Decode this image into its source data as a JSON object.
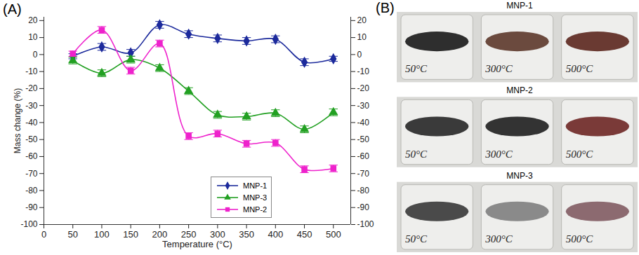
{
  "chart_data": {
    "type": "line",
    "panel_label": "(A)",
    "x_label": "Temperature (°C)",
    "y_label": "Mass change (%)",
    "x": [
      50,
      100,
      150,
      200,
      250,
      300,
      350,
      400,
      450,
      500
    ],
    "xlim": [
      0,
      530
    ],
    "xticks": [
      0,
      50,
      100,
      150,
      200,
      250,
      300,
      350,
      400,
      450,
      500
    ],
    "ylim": [
      -100,
      22
    ],
    "yticks": [
      -100,
      -90,
      -80,
      -70,
      -60,
      -50,
      -40,
      -30,
      -20,
      -10,
      0,
      10,
      20
    ],
    "line_style": "smooth",
    "grid": false,
    "legend": "lower-right",
    "series": [
      {
        "name": "MNP-1",
        "color": "#1c2a9c",
        "marker": "diamond",
        "values": [
          -1,
          4.5,
          1,
          17.5,
          12,
          9.5,
          8,
          9,
          -4.5,
          -2.5
        ],
        "errors": [
          1.5,
          2,
          2,
          2,
          2,
          2,
          2,
          2,
          2,
          1.5
        ]
      },
      {
        "name": "MNP-3",
        "color": "#22a022",
        "marker": "triangle",
        "values": [
          -3.5,
          -11,
          -3,
          -8,
          -21.5,
          -35.5,
          -36.5,
          -34.5,
          -44,
          -34
        ],
        "errors": [
          2,
          2,
          2,
          2,
          2,
          2,
          2,
          2,
          2,
          2
        ]
      },
      {
        "name": "MNP-2",
        "color": "#ee22cc",
        "marker": "square",
        "values": [
          0.5,
          14.5,
          -9.5,
          6.5,
          -48,
          -46.5,
          -52.5,
          -52,
          -67.5,
          -67
        ],
        "errors": [
          1.5,
          2,
          2,
          2,
          2,
          2,
          2,
          2,
          2,
          2
        ]
      }
    ]
  },
  "panel_b": {
    "panel_label": "(B)",
    "rows": [
      {
        "title": "MNP-1",
        "vials": [
          {
            "label": "50°C",
            "color": "#2e2e2e"
          },
          {
            "label": "300°C",
            "color": "#6b4a3e"
          },
          {
            "label": "500°C",
            "color": "#6a3a32"
          }
        ]
      },
      {
        "title": "MNP-2",
        "vials": [
          {
            "label": "50°C",
            "color": "#3a3a3a"
          },
          {
            "label": "300°C",
            "color": "#333333"
          },
          {
            "label": "500°C",
            "color": "#7a3a38"
          }
        ]
      },
      {
        "title": "MNP-3",
        "vials": [
          {
            "label": "50°C",
            "color": "#4a4a4a"
          },
          {
            "label": "300°C",
            "color": "#8a8a8a"
          },
          {
            "label": "500°C",
            "color": "#8c6a70"
          }
        ]
      }
    ]
  }
}
